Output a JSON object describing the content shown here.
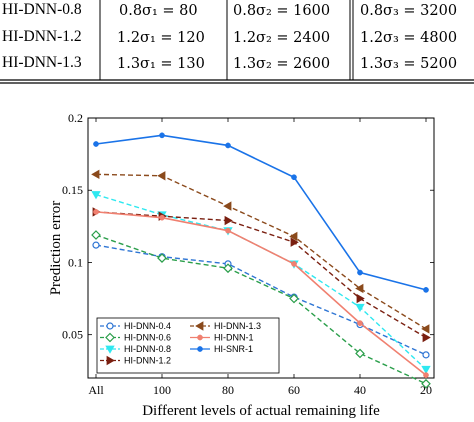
{
  "table": {
    "rows": [
      {
        "label": "HI-DNN-0.8",
        "cells": [
          "0.8σ₁ = 80",
          "0.8σ₂ = 1600",
          "0.8σ₃ = 3200"
        ]
      },
      {
        "label": "HI-DNN-1.2",
        "cells": [
          "1.2σ₁ = 120",
          "1.2σ₂ = 2400",
          "1.2σ₃ = 4800"
        ]
      },
      {
        "label": "HI-DNN-1.3",
        "cells": [
          "1.3σ₁ = 130",
          "1.3σ₂ = 2600",
          "1.3σ₃ = 5200"
        ]
      }
    ]
  },
  "chart_data": {
    "type": "line",
    "xlabel": "Different levels of actual remaining life",
    "ylabel": "Prediction error",
    "categories": [
      "All",
      "100",
      "80",
      "60",
      "40",
      "20"
    ],
    "yticks": [
      "0.05",
      "0.1",
      "0.15",
      "0.2"
    ],
    "ylim": [
      0.02,
      0.2
    ],
    "grid": false,
    "legend_position": "bottom-left",
    "series": [
      {
        "name": "HI-DNN-0.4",
        "color": "#2e75d4",
        "dash": "dashed",
        "marker": "circle-open",
        "values": [
          0.112,
          0.104,
          0.099,
          0.076,
          0.057,
          0.036
        ]
      },
      {
        "name": "HI-DNN-0.6",
        "color": "#2a9e4a",
        "dash": "dashed",
        "marker": "diamond-open",
        "values": [
          0.119,
          0.103,
          0.096,
          0.075,
          0.037,
          0.016
        ]
      },
      {
        "name": "HI-DNN-0.8",
        "color": "#2ee8f0",
        "dash": "dashed",
        "marker": "triangle-down",
        "values": [
          0.147,
          0.133,
          0.122,
          0.099,
          0.069,
          0.026
        ]
      },
      {
        "name": "HI-DNN-1.2",
        "color": "#7a1f10",
        "dash": "dashed",
        "marker": "triangle-right",
        "values": [
          0.135,
          0.132,
          0.129,
          0.114,
          0.075,
          0.048
        ]
      },
      {
        "name": "HI-DNN-1.3",
        "color": "#8b4a1c",
        "dash": "dashed",
        "marker": "triangle-left",
        "values": [
          0.161,
          0.16,
          0.139,
          0.118,
          0.082,
          0.054
        ]
      },
      {
        "name": "HI-DNN-1",
        "color": "#f08070",
        "dash": "solid",
        "marker": "dot",
        "values": [
          0.135,
          0.131,
          0.122,
          0.099,
          0.058,
          0.022
        ]
      },
      {
        "name": "HI-SNR-1",
        "color": "#1a73e8",
        "dash": "solid",
        "marker": "dot",
        "values": [
          0.182,
          0.188,
          0.181,
          0.159,
          0.093,
          0.081
        ]
      }
    ],
    "legend_order": [
      "HI-DNN-0.4",
      "HI-DNN-1.3",
      "HI-DNN-0.6",
      "HI-DNN-1",
      "HI-DNN-0.8",
      "HI-SNR-1",
      "HI-DNN-1.2"
    ]
  }
}
